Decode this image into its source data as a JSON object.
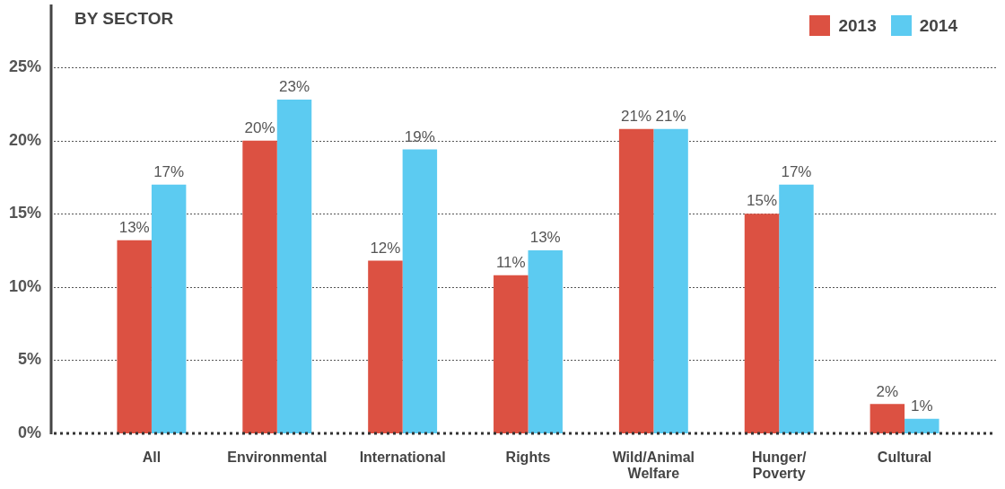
{
  "chart_data": {
    "type": "bar",
    "title": "BY SECTOR",
    "categories": [
      "All",
      "Environmental",
      "International",
      "Rights",
      "Wild/Animal\nWelfare",
      "Hunger/\nPoverty",
      "Cultural"
    ],
    "series": [
      {
        "name": "2013",
        "color": "#dc5142",
        "values": [
          13.2,
          20,
          11.8,
          10.8,
          20.8,
          15,
          2
        ],
        "value_labels": [
          "13%",
          "20%",
          "12%",
          "11%",
          "21%",
          "15%",
          "2%"
        ]
      },
      {
        "name": "2014",
        "color": "#5ccbf1",
        "values": [
          17,
          22.8,
          19.4,
          12.5,
          20.8,
          17,
          1
        ],
        "value_labels": [
          "17%",
          "23%",
          "19%",
          "13%",
          "21%",
          "17%",
          "1%"
        ]
      }
    ],
    "ylim": [
      0,
      29.3
    ],
    "yticks": [
      {
        "value": 0,
        "label": "0%"
      },
      {
        "value": 5,
        "label": "5%"
      },
      {
        "value": 10,
        "label": "10%"
      },
      {
        "value": 15,
        "label": "15%"
      },
      {
        "value": 20,
        "label": "20%"
      },
      {
        "value": 25,
        "label": "25%"
      }
    ],
    "grid": "y",
    "legend": "top right"
  }
}
